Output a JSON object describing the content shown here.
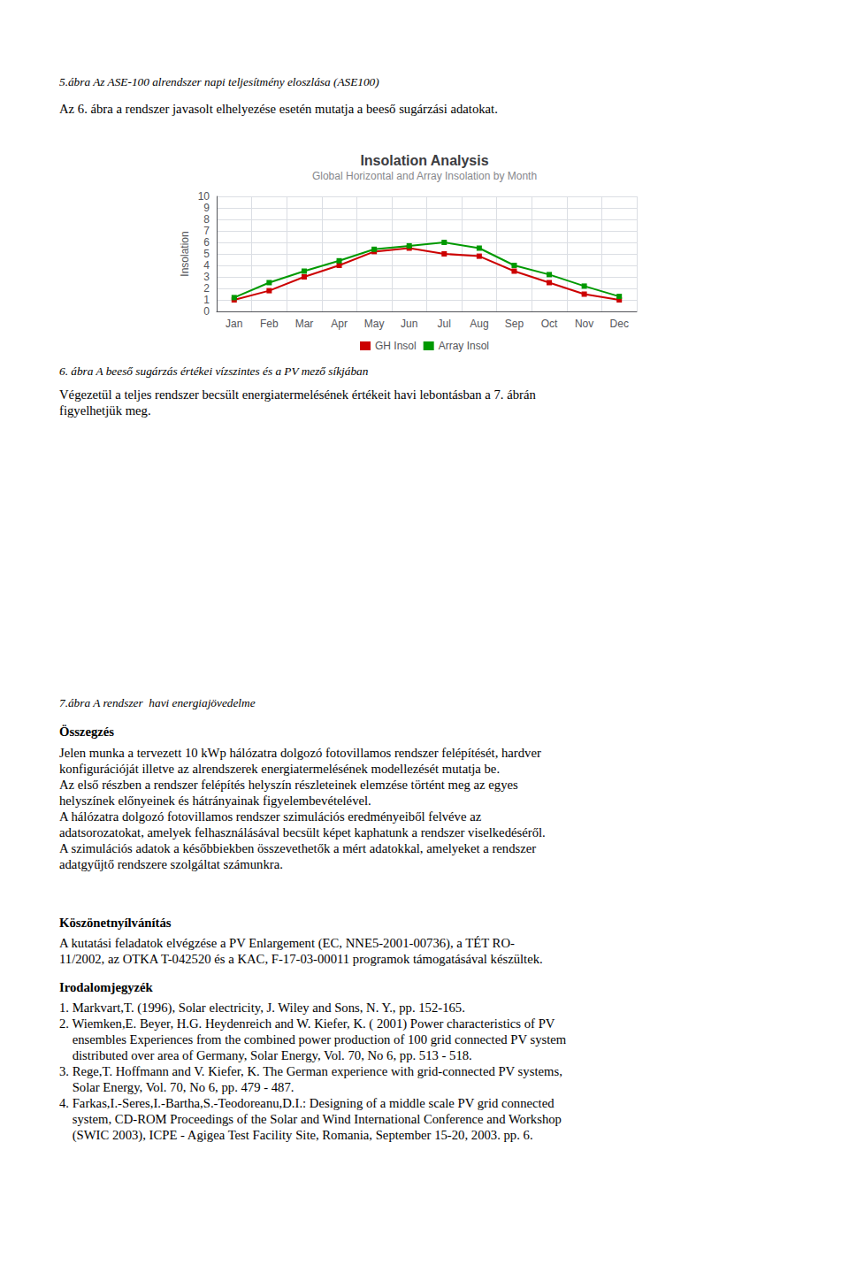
{
  "chart_data": {
    "type": "line",
    "title": "Insolation Analysis",
    "subtitle": "Global Horizontal and Array Insolation by Month",
    "ylabel": "Insolation",
    "categories": [
      "Jan",
      "Feb",
      "Mar",
      "Apr",
      "May",
      "Jun",
      "Jul",
      "Aug",
      "Sep",
      "Oct",
      "Nov",
      "Dec"
    ],
    "series": [
      {
        "name": "GH Insol",
        "color": "#cc0000",
        "marker": "square",
        "values": [
          1.0,
          1.8,
          3.0,
          4.0,
          5.2,
          5.5,
          5.0,
          4.8,
          3.5,
          2.5,
          1.5,
          1.0
        ]
      },
      {
        "name": "Array Insol",
        "color": "#009900",
        "marker": "square",
        "values": [
          1.2,
          2.5,
          3.5,
          4.4,
          5.4,
          5.7,
          6.0,
          5.5,
          4.0,
          3.2,
          2.2,
          1.3
        ]
      }
    ],
    "ylim": [
      0,
      10
    ],
    "yticks": [
      0,
      1,
      2,
      3,
      4,
      5,
      6,
      7,
      8,
      9,
      10
    ],
    "grid": true,
    "legend": "bottom",
    "annotations": [
      "5.ábra Az ASE-100 alrendszer napi teljesítmény eloszlása (ASE100)",
      "Az 6. ábra a rendszer javasolt elhelyezése esetén mutatja a beeső sugárzási adatokat.",
      "6. ábra A beeső sugárzás értékei vízszintes és a PV mező síkjában",
      "Végezetül a teljes rendszer becsült energiatermelésének értékeit havi lebontásban a 7. ábrán\nfigyelhetjük meg.",
      "7.ábra A rendszer  havi energiajövedelme",
      "Összegzés",
      "Jelen munka a tervezett 10 kWp hálózatra dolgozó fotovillamos rendszer felépítését, hardver\nkonfigurációját illetve az alrendszerek energiatermelésének modellezését mutatja be.\nAz első részben a rendszer felépítés helyszín részleteinek elemzése történt meg az egyes\nhelyszínek előnyeinek és hátrányainak figyelembevételével.\nA hálózatra dolgozó fotovillamos rendszer szimulációs eredményeiből felvéve az\nadatsorozatokat, amelyek felhasználásával becsült képet kaphatunk a rendszer viselkedéséről.\nA szimulációs adatok a későbbiekben összevethetők a mért adatokkal, amelyeket a rendszer\nadatgyűjtő rendszere szolgáltat számunkra.",
      "Köszönetnyílvánítás",
      "A kutatási feladatok elvégzése a PV Enlargement (EC, NNE5-2001-00736), a TÉT RO-\n11/2002, az OTKA T-042520 és a KAC, F-17-03-00011 programok támogatásával készültek.",
      "Irodalomjegyzék",
      "1. Markvart,T. (1996), Solar electricity, J. Wiley and Sons, N. Y., pp. 152-165.\n2. Wiemken,E. Beyer, H.G. Heydenreich and W. Kiefer, K. ( 2001) Power characteristics of PV\n    ensembles Experiences from the combined power production of 100 grid connected PV system\n    distributed over area of Germany, Solar Energy, Vol. 70, No 6, pp. 513 - 518.\n3. Rege,T. Hoffmann and V. Kiefer, K. The German experience with grid-connected PV systems,\n    Solar Energy, Vol. 70, No 6, pp. 479 - 487.\n4. Farkas,I.-Seres,I.-Bartha,S.-Teodoreanu,D.I.: Designing of a middle scale PV grid connected\n    system, CD-ROM Proceedings of the Solar and Wind International Conference and Workshop\n    (SWIC 2003), ICPE - Agigea Test Facility Site, Romania, September 15-20, 2003. pp. 6."
    ]
  }
}
